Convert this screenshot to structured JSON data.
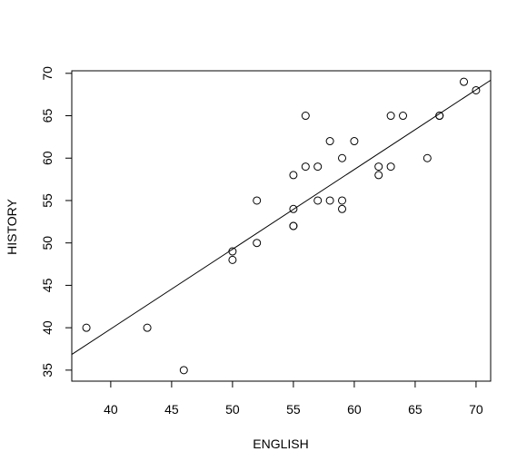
{
  "chart_data": {
    "type": "scatter",
    "title": "",
    "xlabel": "ENGLISH",
    "ylabel": "HISTORY",
    "xlim": [
      36.8,
      71.2
    ],
    "ylim": [
      33.7,
      70.3
    ],
    "xticks": [
      "40",
      "45",
      "50",
      "55",
      "60",
      "65",
      "70"
    ],
    "yticks": [
      "35",
      "40",
      "45",
      "50",
      "55",
      "60",
      "65",
      "70"
    ],
    "grid": false,
    "legend": "none",
    "points": {
      "x": [
        38,
        43,
        46,
        50,
        50,
        52,
        52,
        55,
        55,
        55,
        55,
        56,
        56,
        57,
        57,
        58,
        58,
        59,
        59,
        59,
        60,
        62,
        62,
        63,
        63,
        64,
        66,
        67,
        67,
        69,
        70
      ],
      "y": [
        40,
        40,
        35,
        49,
        48,
        55,
        50,
        58,
        54,
        52,
        52,
        65,
        59,
        59,
        55,
        62,
        55,
        60,
        55,
        54,
        62,
        59,
        58,
        65,
        59,
        65,
        60,
        65,
        65,
        69,
        68
      ]
    },
    "fit_line": {
      "intercept": 2.26,
      "slope": 0.94
    }
  }
}
